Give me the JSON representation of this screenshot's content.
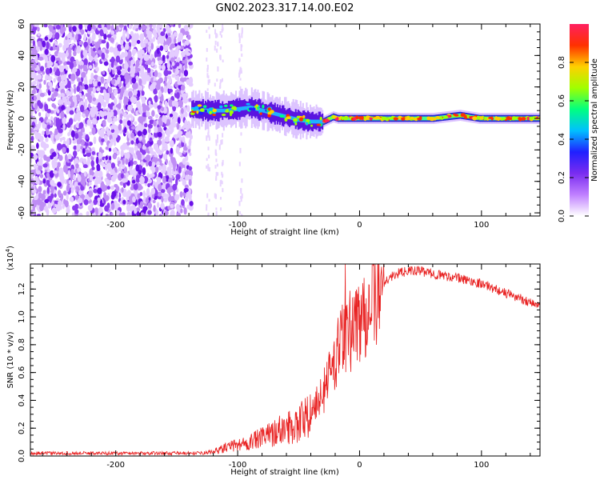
{
  "figure_title": "GN02.2023.317.14.00.E02",
  "chart_data": [
    {
      "type": "heatmap",
      "ylabel": "Frequency (Hz)",
      "xlabel": "Height of straight line (km)",
      "xlim": [
        -270,
        148
      ],
      "ylim": [
        -62,
        60
      ],
      "x_ticks": [
        -200,
        -100,
        0,
        100
      ],
      "x_tick_labels": [
        "-200",
        "-100",
        "0",
        "100"
      ],
      "y_ticks": [
        -60,
        -40,
        -20,
        0,
        20,
        40,
        60
      ],
      "y_tick_labels": [
        "-60",
        "-40",
        "-20",
        "0",
        "20",
        "40",
        "60"
      ],
      "colorbar": {
        "label": "Normalized spectral amplitude",
        "range": [
          0,
          1
        ],
        "ticks": [
          0,
          0.2,
          0.4,
          0.6,
          0.8
        ],
        "tick_labels": [
          "0.0",
          "0.2",
          "0.4",
          "0.6",
          "0.8"
        ],
        "colormap": [
          "#ffffff",
          "#c080ff",
          "#7a2cf0",
          "#2020ff",
          "#00c0ff",
          "#00ff80",
          "#a0ff00",
          "#ffd000",
          "#ff3000",
          "#ff2060"
        ]
      },
      "signal_track": {
        "x": [
          -138,
          -125,
          -110,
          -100,
          -90,
          -80,
          -70,
          -60,
          -50,
          -40,
          -30,
          -22,
          -18,
          -10,
          0,
          20,
          40,
          60,
          82,
          98,
          120,
          148
        ],
        "frequency": [
          6,
          5,
          5,
          6,
          7,
          5,
          3,
          1,
          -1,
          -2,
          -2,
          1,
          0,
          0,
          0,
          0,
          0,
          0,
          2,
          0,
          0,
          0
        ]
      },
      "noise_region_x": [
        -270,
        -138
      ],
      "grid": false
    },
    {
      "type": "line",
      "ylabel": "SNR (10 * v/v)",
      "y_multiplier": "(x10",
      "y_multiplier_exp": "4",
      "y_multiplier_close": ")",
      "xlabel": "Height of straight line (km)",
      "xlim": [
        -270,
        148
      ],
      "ylim": [
        0,
        1.38
      ],
      "x_ticks": [
        -200,
        -100,
        0,
        100
      ],
      "x_tick_labels": [
        "-200",
        "-100",
        "0",
        "100"
      ],
      "y_ticks": [
        0,
        0.2,
        0.4,
        0.6,
        0.8,
        1.0,
        1.2
      ],
      "y_tick_labels": [
        "0.0",
        "0.2",
        "0.4",
        "0.6",
        "0.8",
        "1.0",
        "1.2"
      ],
      "series": [
        {
          "color": "#e82020",
          "x": [
            -270,
            -240,
            -200,
            -160,
            -130,
            -120,
            -110,
            -100,
            -90,
            -80,
            -70,
            -60,
            -50,
            -45,
            -40,
            -35,
            -30,
            -25,
            -20,
            -15,
            -10,
            -5,
            0,
            10,
            20,
            30,
            40,
            50,
            60,
            80,
            100,
            120,
            148
          ],
          "y": [
            0.02,
            0.02,
            0.02,
            0.02,
            0.02,
            0.03,
            0.06,
            0.08,
            0.1,
            0.13,
            0.17,
            0.2,
            0.24,
            0.28,
            0.3,
            0.38,
            0.45,
            0.58,
            0.7,
            0.8,
            0.88,
            0.95,
            1.0,
            1.12,
            1.25,
            1.31,
            1.33,
            1.33,
            1.31,
            1.28,
            1.24,
            1.17,
            1.08
          ]
        }
      ],
      "grid": false
    }
  ]
}
